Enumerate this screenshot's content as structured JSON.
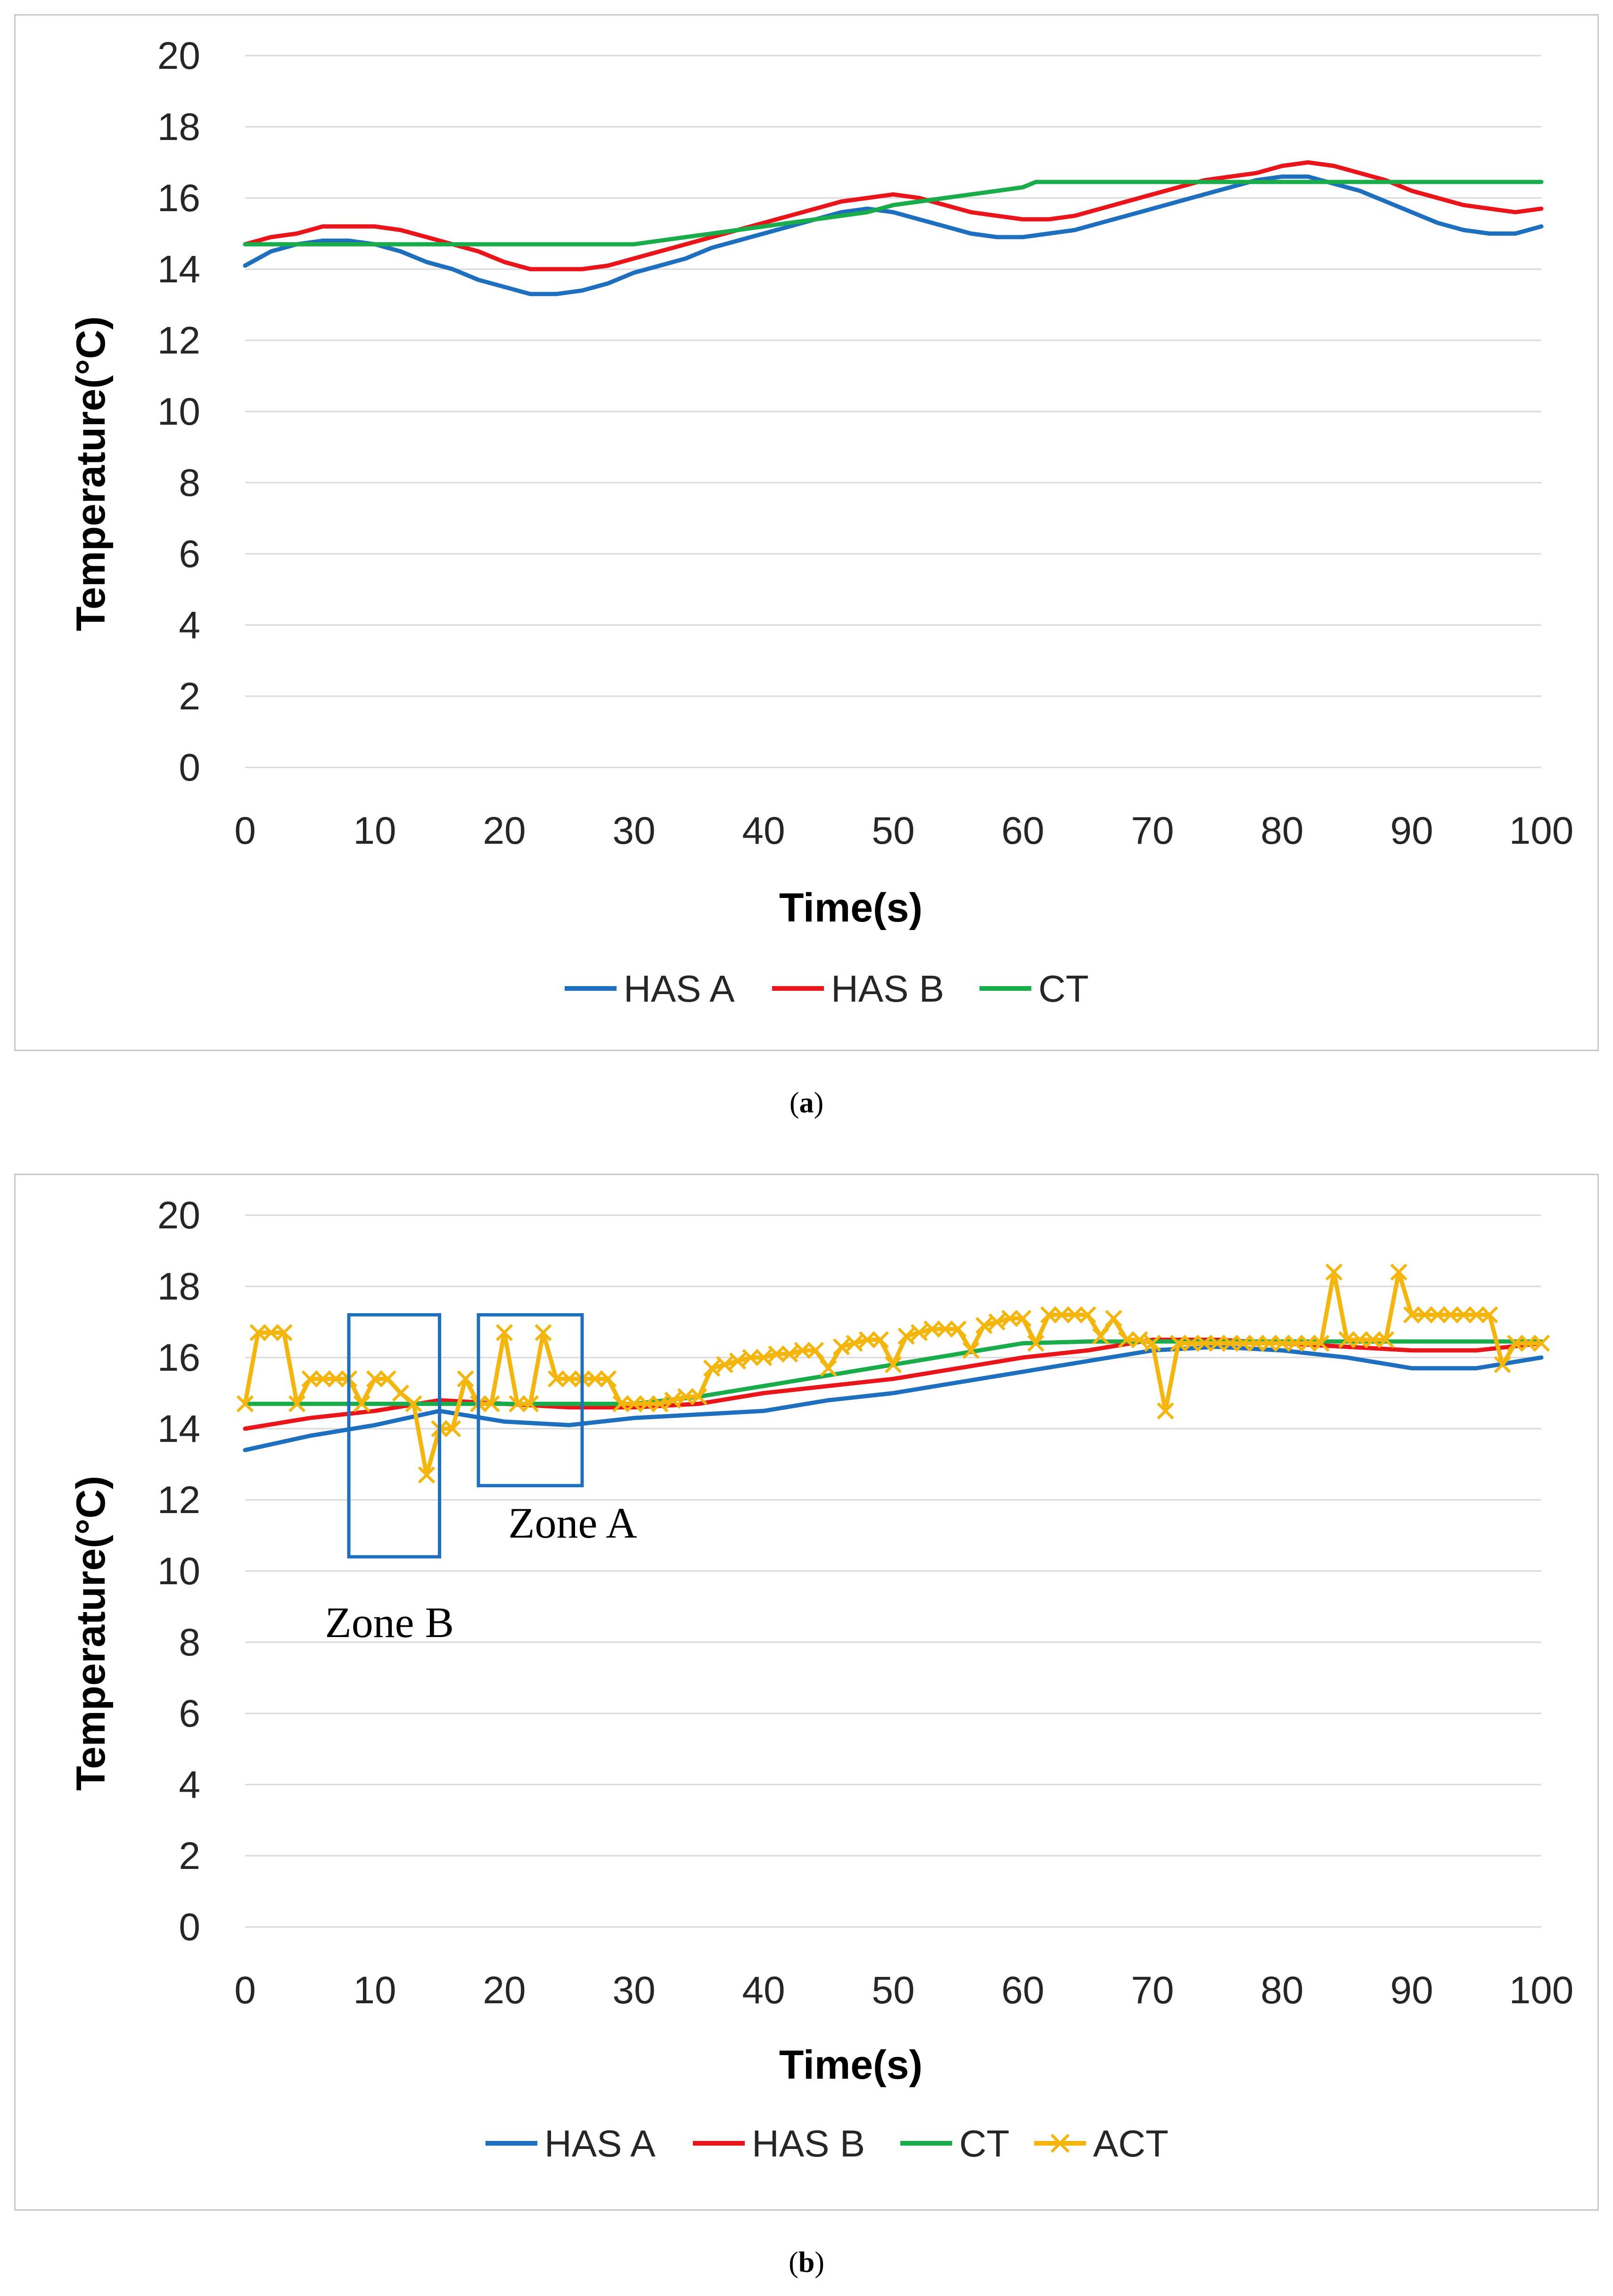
{
  "chart_data": [
    {
      "type": "line",
      "panel": "a",
      "caption": "a",
      "xlabel": "Time(s)",
      "ylabel": "Temperature(°C)",
      "xlim": [
        0,
        100
      ],
      "ylim": [
        0,
        20
      ],
      "xticks": [
        0,
        10,
        20,
        30,
        40,
        50,
        60,
        70,
        80,
        90,
        100
      ],
      "yticks": [
        0,
        2,
        4,
        6,
        8,
        10,
        12,
        14,
        16,
        18,
        20
      ],
      "grid": true,
      "legend_position": "bottom",
      "series": [
        {
          "name": "HAS A",
          "color": "#1f6fbf",
          "x": [
            0,
            2,
            4,
            6,
            8,
            10,
            12,
            14,
            16,
            18,
            20,
            22,
            24,
            26,
            28,
            30,
            32,
            34,
            36,
            38,
            40,
            42,
            44,
            46,
            48,
            50,
            52,
            54,
            56,
            58,
            60,
            62,
            64,
            66,
            68,
            70,
            72,
            74,
            76,
            78,
            80,
            82,
            84,
            86,
            88,
            90,
            92,
            94,
            96,
            98,
            100
          ],
          "y": [
            14.1,
            14.5,
            14.7,
            14.8,
            14.8,
            14.7,
            14.5,
            14.2,
            14.0,
            13.7,
            13.5,
            13.3,
            13.3,
            13.4,
            13.6,
            13.9,
            14.1,
            14.3,
            14.6,
            14.8,
            15.0,
            15.2,
            15.4,
            15.6,
            15.7,
            15.6,
            15.4,
            15.2,
            15.0,
            14.9,
            14.9,
            15.0,
            15.1,
            15.3,
            15.5,
            15.7,
            15.9,
            16.1,
            16.3,
            16.5,
            16.6,
            16.6,
            16.4,
            16.2,
            15.9,
            15.6,
            15.3,
            15.1,
            15.0,
            15.0,
            15.2
          ]
        },
        {
          "name": "HAS B",
          "color": "#e8161b",
          "x": [
            0,
            2,
            4,
            6,
            8,
            10,
            12,
            14,
            16,
            18,
            20,
            22,
            24,
            26,
            28,
            30,
            32,
            34,
            36,
            38,
            40,
            42,
            44,
            46,
            48,
            50,
            52,
            54,
            56,
            58,
            60,
            62,
            64,
            66,
            68,
            70,
            72,
            74,
            76,
            78,
            80,
            82,
            84,
            86,
            88,
            90,
            92,
            94,
            96,
            98,
            100
          ],
          "y": [
            14.7,
            14.9,
            15.0,
            15.2,
            15.2,
            15.2,
            15.1,
            14.9,
            14.7,
            14.5,
            14.2,
            14.0,
            14.0,
            14.0,
            14.1,
            14.3,
            14.5,
            14.7,
            14.9,
            15.1,
            15.3,
            15.5,
            15.7,
            15.9,
            16.0,
            16.1,
            16.0,
            15.8,
            15.6,
            15.5,
            15.4,
            15.4,
            15.5,
            15.7,
            15.9,
            16.1,
            16.3,
            16.5,
            16.6,
            16.7,
            16.9,
            17.0,
            16.9,
            16.7,
            16.5,
            16.2,
            16.0,
            15.8,
            15.7,
            15.6,
            15.7
          ]
        },
        {
          "name": "CT",
          "color": "#1aab4b",
          "x": [
            0,
            10,
            20,
            30,
            32,
            34,
            36,
            38,
            40,
            42,
            44,
            46,
            48,
            50,
            52,
            54,
            56,
            58,
            60,
            61,
            70,
            80,
            90,
            100
          ],
          "y": [
            14.7,
            14.7,
            14.7,
            14.7,
            14.8,
            14.9,
            15.0,
            15.1,
            15.2,
            15.3,
            15.4,
            15.5,
            15.6,
            15.8,
            15.9,
            16.0,
            16.1,
            16.2,
            16.3,
            16.45,
            16.45,
            16.45,
            16.45,
            16.45
          ]
        }
      ]
    },
    {
      "type": "line",
      "panel": "b",
      "caption": "b",
      "xlabel": "Time(s)",
      "ylabel": "Temperature(°C)",
      "xlim": [
        0,
        100
      ],
      "ylim": [
        0,
        20
      ],
      "xticks": [
        0,
        10,
        20,
        30,
        40,
        50,
        60,
        70,
        80,
        90,
        100
      ],
      "yticks": [
        0,
        2,
        4,
        6,
        8,
        10,
        12,
        14,
        16,
        18,
        20
      ],
      "grid": true,
      "legend_position": "bottom",
      "annotations": [
        {
          "label": "Zone B",
          "x_range": [
            8,
            15
          ],
          "y_range": [
            10.4,
            17.2
          ]
        },
        {
          "label": "Zone A",
          "x_range": [
            18,
            26
          ],
          "y_range": [
            12.4,
            17.2
          ]
        }
      ],
      "series": [
        {
          "name": "HAS A",
          "color": "#1f6fbf",
          "x": [
            0,
            5,
            10,
            15,
            20,
            25,
            30,
            35,
            40,
            45,
            50,
            55,
            60,
            65,
            70,
            75,
            80,
            85,
            90,
            95,
            100
          ],
          "y": [
            13.4,
            13.8,
            14.1,
            14.5,
            14.2,
            14.1,
            14.3,
            14.4,
            14.5,
            14.8,
            15.0,
            15.3,
            15.6,
            15.9,
            16.2,
            16.3,
            16.2,
            16.0,
            15.7,
            15.7,
            16.0
          ]
        },
        {
          "name": "HAS B",
          "color": "#e8161b",
          "x": [
            0,
            5,
            10,
            15,
            20,
            25,
            30,
            35,
            40,
            45,
            50,
            55,
            60,
            65,
            70,
            75,
            80,
            85,
            90,
            95,
            100
          ],
          "y": [
            14.0,
            14.3,
            14.5,
            14.8,
            14.7,
            14.6,
            14.6,
            14.7,
            15.0,
            15.2,
            15.4,
            15.7,
            16.0,
            16.2,
            16.5,
            16.5,
            16.4,
            16.3,
            16.2,
            16.2,
            16.4
          ]
        },
        {
          "name": "CT",
          "color": "#1aab4b",
          "x": [
            0,
            10,
            20,
            30,
            35,
            40,
            45,
            50,
            55,
            60,
            65,
            70,
            75,
            80,
            85,
            90,
            95,
            100
          ],
          "y": [
            14.7,
            14.7,
            14.7,
            14.7,
            14.9,
            15.2,
            15.5,
            15.8,
            16.1,
            16.4,
            16.45,
            16.45,
            16.45,
            16.45,
            16.45,
            16.45,
            16.45,
            16.45
          ]
        },
        {
          "name": "ACT",
          "color": "#f4b60d",
          "x": [
            0,
            1,
            2,
            3,
            4,
            5,
            6,
            7,
            8,
            9,
            10,
            11,
            12,
            13,
            14,
            15,
            16,
            17,
            18,
            19,
            20,
            21,
            22,
            23,
            24,
            25,
            26,
            27,
            28,
            29,
            30,
            31,
            32,
            33,
            34,
            35,
            36,
            37,
            38,
            39,
            40,
            41,
            42,
            43,
            44,
            45,
            46,
            47,
            48,
            49,
            50,
            51,
            52,
            53,
            54,
            55,
            56,
            57,
            58,
            59,
            60,
            61,
            62,
            63,
            64,
            65,
            66,
            67,
            68,
            69,
            70,
            71,
            72,
            73,
            74,
            75,
            76,
            77,
            78,
            79,
            80,
            81,
            82,
            83,
            84,
            85,
            86,
            87,
            88,
            89,
            90,
            91,
            92,
            93,
            94,
            95,
            96,
            97,
            98,
            99,
            100
          ],
          "y": [
            14.7,
            16.7,
            16.7,
            16.7,
            14.7,
            15.4,
            15.4,
            15.4,
            15.4,
            14.7,
            15.4,
            15.4,
            15.0,
            14.7,
            12.7,
            14.0,
            14.0,
            15.4,
            14.7,
            14.7,
            16.7,
            14.7,
            14.7,
            16.7,
            15.4,
            15.4,
            15.4,
            15.4,
            15.4,
            14.7,
            14.7,
            14.7,
            14.7,
            14.8,
            14.9,
            14.9,
            15.7,
            15.8,
            15.9,
            16.0,
            16.0,
            16.1,
            16.1,
            16.2,
            16.2,
            15.7,
            16.3,
            16.4,
            16.5,
            16.5,
            15.8,
            16.6,
            16.7,
            16.8,
            16.8,
            16.8,
            16.2,
            16.9,
            17.0,
            17.1,
            17.1,
            16.4,
            17.2,
            17.2,
            17.2,
            17.2,
            16.6,
            17.1,
            16.5,
            16.5,
            16.4,
            14.5,
            16.4,
            16.4,
            16.4,
            16.4,
            16.4,
            16.4,
            16.4,
            16.4,
            16.4,
            16.4,
            16.4,
            16.4,
            18.4,
            16.5,
            16.5,
            16.5,
            16.5,
            18.4,
            17.2,
            17.2,
            17.2,
            17.2,
            17.2,
            17.2,
            17.2,
            15.8,
            16.4,
            16.4,
            16.4
          ]
        }
      ]
    }
  ]
}
